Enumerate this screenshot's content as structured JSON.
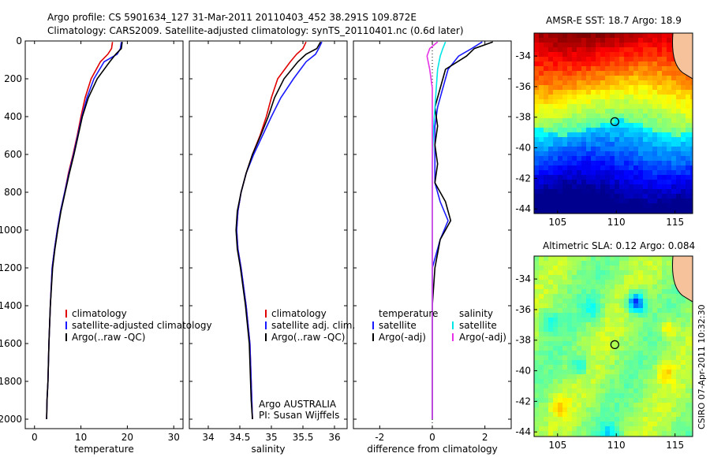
{
  "header": {
    "line1": "Argo profile: CS 5901634_127 31-Mar-2011 20110403_452 38.291S 109.872E",
    "line2": "Climatology: CARS2009. Satellite-adjusted climatology: synTS_20110401.nc (0.6d later)"
  },
  "side_stamp": "CSIRO 07-Apr-2011 10:32:30",
  "colors": {
    "climatology": "#e00000",
    "satellite": "#1a1aff",
    "argo": "#000000",
    "sal_sat": "#00e5e5",
    "sal_argo": "#e633e6"
  },
  "chart_data": [
    {
      "type": "line",
      "name": "temperature-panel",
      "xlabel": "temperature",
      "ylabel": "",
      "xlim": [
        -2,
        32
      ],
      "ylim": [
        2050,
        0
      ],
      "xticks": [
        0,
        10,
        20,
        30
      ],
      "yticks": [
        0,
        200,
        400,
        600,
        800,
        1000,
        1200,
        1400,
        1600,
        1800,
        2000
      ],
      "legend": [
        "climatology",
        "satellite-adjusted climatology",
        "Argo(..raw -QC)"
      ],
      "series": [
        {
          "name": "climatology",
          "color": "#e00000",
          "x": [
            16.8,
            16.6,
            15.8,
            14.2,
            12.2,
            10.9,
            10.0,
            9.2,
            8.3,
            7.3,
            6.5,
            5.6,
            4.9,
            4.3,
            3.8,
            3.4,
            3.1,
            2.9,
            2.7,
            2.6
          ],
          "y": [
            5,
            40,
            70,
            110,
            200,
            300,
            400,
            500,
            600,
            700,
            800,
            900,
            1000,
            1100,
            1200,
            1400,
            1600,
            1800,
            1900,
            2000
          ]
        },
        {
          "name": "satellite-adjusted climatology",
          "color": "#1a1aff",
          "x": [
            18.7,
            18.5,
            17.8,
            15.0,
            12.8,
            11.3,
            10.2,
            9.3,
            8.4,
            7.4,
            6.5,
            5.6,
            4.9,
            4.3,
            3.8,
            3.4,
            3.1,
            2.9,
            2.7,
            2.6
          ],
          "y": [
            5,
            40,
            70,
            110,
            200,
            300,
            400,
            500,
            600,
            700,
            800,
            900,
            1000,
            1100,
            1200,
            1400,
            1600,
            1800,
            1900,
            2000
          ]
        },
        {
          "name": "Argo(..raw -QC)",
          "color": "#000000",
          "x": [
            18.9,
            18.7,
            17.5,
            16.2,
            13.5,
            11.6,
            10.3,
            9.4,
            8.5,
            7.5,
            6.6,
            5.7,
            5.0,
            4.4,
            3.9,
            3.4,
            3.1,
            2.9,
            2.7,
            2.6
          ],
          "y": [
            5,
            40,
            70,
            110,
            200,
            300,
            400,
            500,
            600,
            700,
            800,
            900,
            1000,
            1100,
            1200,
            1400,
            1600,
            1800,
            1900,
            2000
          ]
        }
      ]
    },
    {
      "type": "line",
      "name": "salinity-panel",
      "xlabel": "salinity",
      "ylabel": "",
      "xlim": [
        33.7,
        36.2
      ],
      "ylim": [
        2050,
        0
      ],
      "xticks": [
        34,
        34.5,
        35,
        35.5,
        36
      ],
      "legend": [
        "climatology",
        "satellite adj. clim.",
        "Argo(..raw -QC)"
      ],
      "annotation": [
        "Argo AUSTRALIA",
        "PI: Susan Wijffels"
      ],
      "series": [
        {
          "name": "climatology",
          "color": "#e00000",
          "x": [
            35.55,
            35.5,
            35.4,
            35.3,
            35.1,
            35.0,
            34.92,
            34.82,
            34.7,
            34.6,
            34.52,
            34.47,
            34.45,
            34.47,
            34.52,
            34.6,
            34.66,
            34.68,
            34.69,
            34.7
          ],
          "y": [
            5,
            40,
            70,
            110,
            200,
            300,
            400,
            500,
            600,
            700,
            800,
            900,
            1000,
            1100,
            1200,
            1400,
            1600,
            1800,
            1900,
            2000
          ]
        },
        {
          "name": "satellite adj. clim.",
          "color": "#1a1aff",
          "x": [
            35.8,
            35.75,
            35.7,
            35.55,
            35.35,
            35.15,
            35.0,
            34.86,
            34.72,
            34.6,
            34.52,
            34.47,
            34.45,
            34.47,
            34.52,
            34.6,
            34.66,
            34.68,
            34.69,
            34.7
          ],
          "y": [
            5,
            40,
            70,
            110,
            200,
            300,
            400,
            500,
            600,
            700,
            800,
            900,
            1000,
            1100,
            1200,
            1400,
            1600,
            1800,
            1900,
            2000
          ]
        },
        {
          "name": "Argo(..raw -QC)",
          "color": "#000000",
          "x": [
            35.78,
            35.72,
            35.55,
            35.42,
            35.2,
            35.05,
            34.95,
            34.83,
            34.7,
            34.6,
            34.52,
            34.46,
            34.44,
            34.46,
            34.51,
            34.59,
            34.65,
            34.67,
            34.68,
            34.7
          ],
          "y": [
            5,
            40,
            70,
            110,
            200,
            300,
            400,
            500,
            600,
            700,
            800,
            900,
            1000,
            1100,
            1200,
            1400,
            1600,
            1800,
            1900,
            2000
          ]
        }
      ]
    },
    {
      "type": "line",
      "name": "difference-panel",
      "xlabel": "difference from climatology",
      "ylabel": "",
      "xlim": [
        -3,
        3
      ],
      "ylim": [
        2050,
        0
      ],
      "xticks": [
        -2,
        0,
        2
      ],
      "legend_left": [
        "temperature",
        "satellite",
        "Argo(-adj)"
      ],
      "legend_right": [
        "salinity",
        "satellite",
        "Argo(-adj)"
      ],
      "series": [
        {
          "name": "temperature satellite",
          "color": "#1a1aff",
          "x": [
            1.9,
            1.5,
            1.0,
            0.6,
            0.4,
            0.2,
            0.1,
            0.1,
            0.1,
            0.1,
            0.3,
            0.6,
            0.3,
            0.0,
            0.0,
            0.0,
            0.0,
            0.0
          ],
          "y": [
            5,
            40,
            80,
            150,
            250,
            350,
            450,
            550,
            650,
            750,
            850,
            950,
            1050,
            1200,
            1400,
            1600,
            1800,
            2000
          ]
        },
        {
          "name": "temperature Argo(-adj)",
          "color": "#000000",
          "x": [
            2.3,
            1.6,
            1.3,
            0.5,
            0.3,
            0.1,
            0.2,
            0.1,
            0.2,
            0.1,
            0.5,
            0.7,
            0.3,
            0.1,
            0.0,
            0.0,
            0.0,
            0.0
          ],
          "y": [
            5,
            40,
            80,
            150,
            250,
            350,
            450,
            550,
            650,
            750,
            850,
            950,
            1050,
            1200,
            1400,
            1600,
            1800,
            2000
          ]
        },
        {
          "name": "salinity satellite",
          "color": "#00e5e5",
          "x": [
            0.5,
            0.4,
            0.3,
            0.2,
            0.15,
            0.1,
            0.05,
            0.02,
            0.0,
            0.0,
            0.0,
            0.0,
            0.0,
            0.0,
            0.0,
            0.0,
            0.0,
            0.0
          ],
          "y": [
            5,
            40,
            80,
            150,
            250,
            350,
            450,
            550,
            650,
            750,
            850,
            950,
            1050,
            1200,
            1400,
            1600,
            1800,
            2000
          ]
        },
        {
          "name": "salinity Argo(-adj)",
          "color": "#e633e6",
          "x": [
            0.2,
            -0.1,
            -0.2,
            -0.1,
            0.0,
            0.0,
            0.0,
            0.0,
            0.0,
            0.0,
            0.0,
            0.0,
            0.0,
            0.0,
            0.0,
            0.0,
            0.0,
            0.0
          ],
          "y": [
            5,
            40,
            80,
            150,
            250,
            350,
            450,
            550,
            650,
            750,
            850,
            950,
            1050,
            1200,
            1400,
            1600,
            1800,
            2000
          ]
        }
      ]
    },
    {
      "type": "heatmap",
      "name": "sst-map",
      "title": "AMSR-E SST: 18.7 Argo: 18.9",
      "xlim": [
        103,
        116.5
      ],
      "ylim": [
        -44.3,
        -32.5
      ],
      "xticks": [
        105,
        110,
        115
      ],
      "yticks": [
        -34,
        -36,
        -38,
        -40,
        -42,
        -44
      ],
      "marker": {
        "lon": 109.872,
        "lat": -38.291
      }
    },
    {
      "type": "heatmap",
      "name": "sla-map",
      "title": "Altimetric SLA: 0.12 Argo: 0.084",
      "xlim": [
        103,
        116.5
      ],
      "ylim": [
        -44.3,
        -32.5
      ],
      "xticks": [
        105,
        110,
        115
      ],
      "yticks": [
        -34,
        -36,
        -38,
        -40,
        -42,
        -44
      ],
      "marker": {
        "lon": 109.872,
        "lat": -38.291
      }
    }
  ]
}
